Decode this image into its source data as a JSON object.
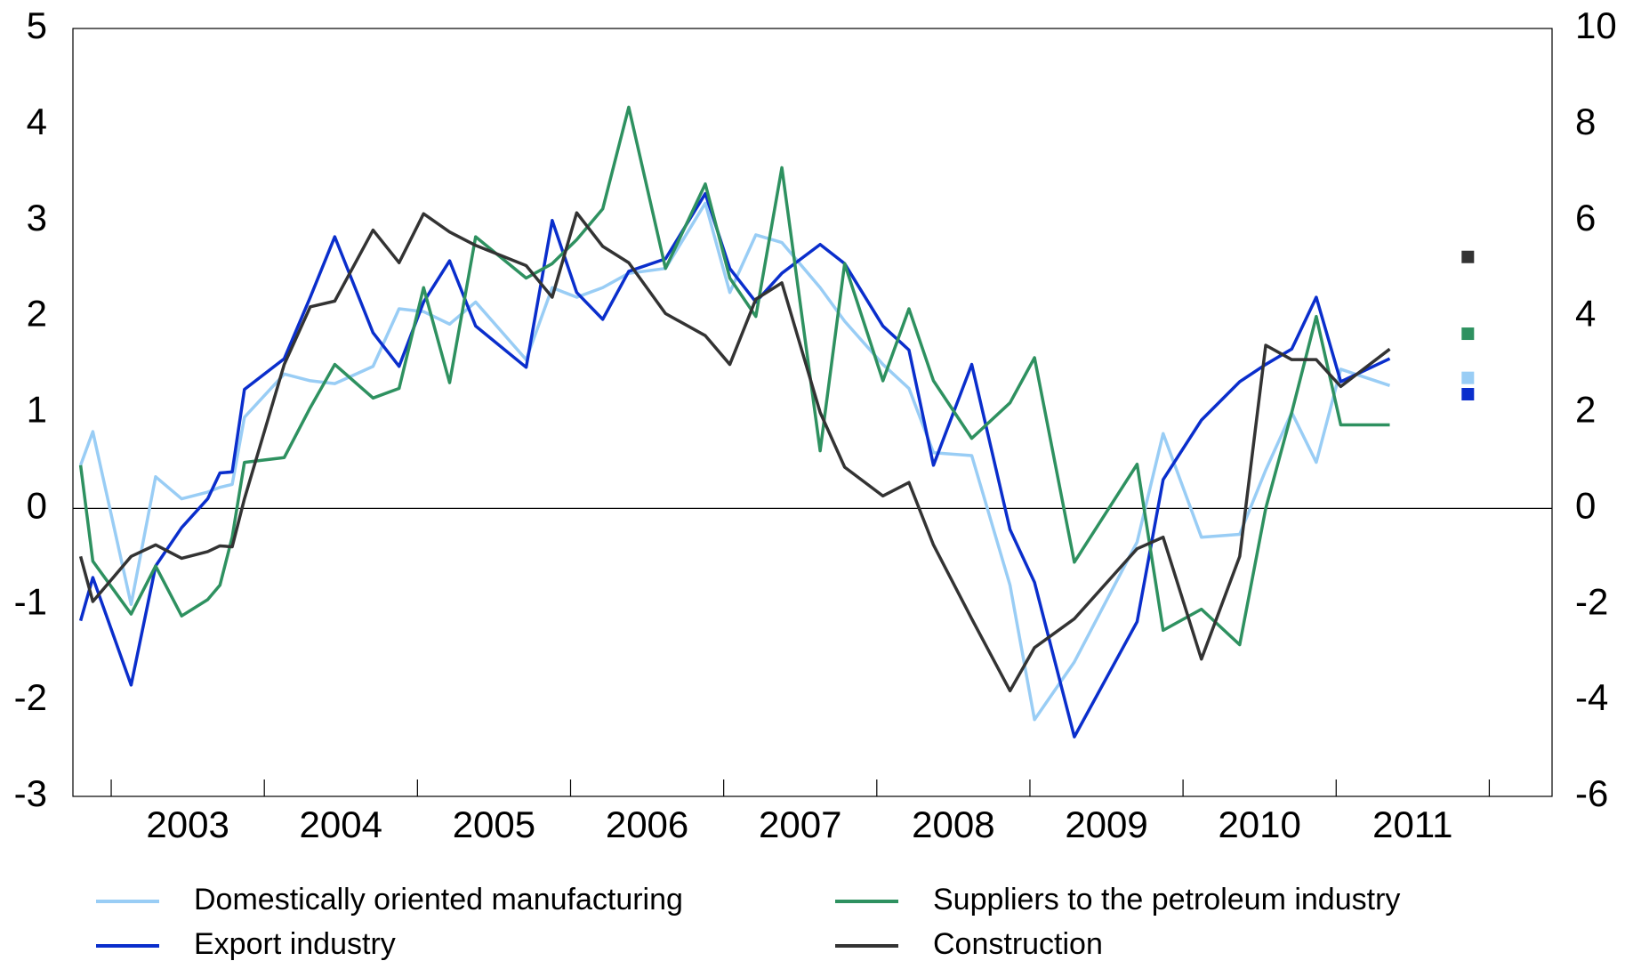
{
  "chart_data": {
    "type": "line",
    "x": [
      2002.8,
      2002.88,
      2003.13,
      2003.29,
      2003.46,
      2003.63,
      2003.71,
      2003.79,
      2003.87,
      2004.13,
      2004.3,
      2004.46,
      2004.71,
      2004.88,
      2005.04,
      2005.21,
      2005.38,
      2005.71,
      2005.88,
      2006.04,
      2006.21,
      2006.38,
      2006.62,
      2006.88,
      2007.04,
      2007.21,
      2007.38,
      2007.63,
      2007.79,
      2008.04,
      2008.21,
      2008.37,
      2008.62,
      2008.87,
      2009.03,
      2009.29,
      2009.7,
      2009.87,
      2010.12,
      2010.37,
      2010.54,
      2010.71,
      2010.87,
      2011.03,
      2011.35
    ],
    "series": [
      {
        "name": "Domestically oriented manufacturing",
        "color": "#99cdf5",
        "values": [
          0.45,
          0.8,
          -1.0,
          0.33,
          0.1,
          0.17,
          0.22,
          0.25,
          0.95,
          1.4,
          1.33,
          1.3,
          1.48,
          2.08,
          2.05,
          1.92,
          2.15,
          1.55,
          2.3,
          2.2,
          2.3,
          2.45,
          2.5,
          3.18,
          2.25,
          2.85,
          2.77,
          2.3,
          1.95,
          1.5,
          1.25,
          0.58,
          0.55,
          -0.8,
          -2.2,
          -1.6,
          -0.35,
          0.78,
          -0.3,
          -0.27,
          0.4,
          1.0,
          0.48,
          1.45,
          1.28
        ],
        "forecast": 1.36
      },
      {
        "name": "Export industry",
        "color": "#0a2ecc",
        "values": [
          -1.17,
          -0.72,
          -1.84,
          -0.6,
          -0.2,
          0.1,
          0.37,
          0.38,
          1.24,
          1.56,
          2.2,
          2.83,
          1.83,
          1.48,
          2.15,
          2.58,
          1.9,
          1.47,
          3.0,
          2.25,
          1.97,
          2.47,
          2.6,
          3.28,
          2.5,
          2.15,
          2.45,
          2.75,
          2.55,
          1.9,
          1.65,
          0.45,
          1.5,
          -0.22,
          -0.77,
          -2.38,
          -1.18,
          0.3,
          0.92,
          1.32,
          1.5,
          1.66,
          2.2,
          1.32,
          1.56
        ],
        "forecast": 1.19
      },
      {
        "name": "Suppliers to the petroleum industry",
        "color": "#2e9160",
        "values": [
          0.45,
          -0.55,
          -1.1,
          -0.6,
          -1.12,
          -0.95,
          -0.8,
          -0.3,
          0.48,
          0.53,
          1.05,
          1.5,
          1.15,
          1.25,
          2.3,
          1.31,
          2.83,
          2.4,
          2.55,
          2.8,
          3.12,
          4.18,
          2.5,
          3.38,
          2.4,
          2.0,
          3.55,
          0.6,
          2.55,
          1.33,
          2.08,
          1.33,
          0.73,
          1.1,
          1.57,
          -0.56,
          0.46,
          -1.27,
          -1.05,
          -1.42,
          0.0,
          1.0,
          2.0,
          0.87,
          0.87
        ],
        "forecast": 1.82
      },
      {
        "name": "Construction",
        "color": "#333333",
        "values": [
          -0.5,
          -0.97,
          -0.5,
          -0.38,
          -0.52,
          -0.45,
          -0.39,
          -0.4,
          0.1,
          1.5,
          2.1,
          2.16,
          2.9,
          2.56,
          3.07,
          2.88,
          2.74,
          2.53,
          2.2,
          3.08,
          2.73,
          2.56,
          2.03,
          1.8,
          1.5,
          2.18,
          2.35,
          1.0,
          0.43,
          0.13,
          0.27,
          -0.38,
          -1.15,
          -1.9,
          -1.45,
          -1.15,
          -0.42,
          -0.3,
          -1.57,
          -0.5,
          1.7,
          1.55,
          1.55,
          1.27,
          1.66
        ],
        "forecast": 2.62
      }
    ],
    "forecast_x": 2011.86,
    "xlim": [
      2002.75,
      2012.41
    ],
    "xticks": [
      2003,
      2004,
      2005,
      2006,
      2007,
      2008,
      2009,
      2010,
      2011,
      2012
    ],
    "year_labels": [
      "2003",
      "2004",
      "2005",
      "2006",
      "2007",
      "2008",
      "2009",
      "2010",
      "2011"
    ],
    "ylim": [
      -3,
      5
    ],
    "yticks": [
      -3,
      -2,
      -1,
      0,
      1,
      2,
      3,
      4,
      5
    ],
    "y2lim": [
      -6,
      10
    ],
    "y2ticks": [
      -6,
      -4,
      -2,
      0,
      2,
      4,
      6,
      8,
      10
    ],
    "zero_line": 0
  }
}
